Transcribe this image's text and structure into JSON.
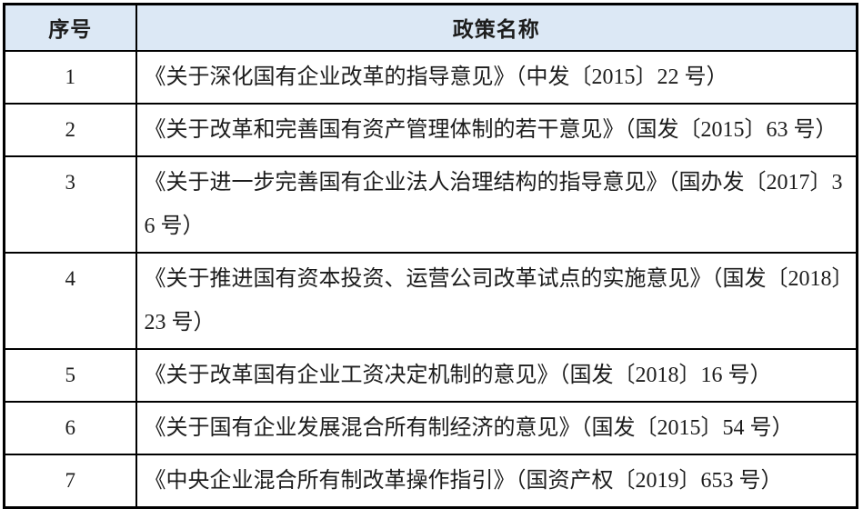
{
  "table": {
    "header": {
      "index_label": "序号",
      "policy_label": "政策名称"
    },
    "rows": [
      {
        "index": "1",
        "policy": "《关于深化国有企业改革的指导意见》（中发〔2015〕22 号）"
      },
      {
        "index": "2",
        "policy": "《关于改革和完善国有资产管理体制的若干意见》（国发〔2015〕63 号）"
      },
      {
        "index": "3",
        "policy": "《关于进一步完善国有企业法人治理结构的指导意见》（国办发〔2017〕36 号）"
      },
      {
        "index": "4",
        "policy": "《关于推进国有资本投资、运营公司改革试点的实施意见》（国发〔2018〕23 号）"
      },
      {
        "index": "5",
        "policy": "《关于改革国有企业工资决定机制的意见》（国发〔2018〕16 号）"
      },
      {
        "index": "6",
        "policy": "《关于国有企业发展混合所有制经济的意见》（国发〔2015〕54 号）"
      },
      {
        "index": "7",
        "policy": "《中央企业混合所有制改革操作指引》（国资产权〔2019〕653 号）"
      }
    ]
  },
  "colors": {
    "header_background": "#dce8f5",
    "border": "#000000",
    "text": "#1c1c1c",
    "body_background": "#ffffff"
  }
}
